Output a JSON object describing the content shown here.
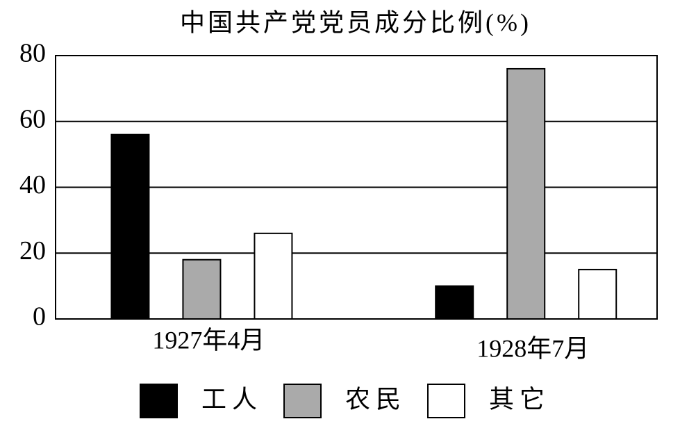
{
  "chart_data": {
    "type": "bar",
    "title": "中国共产党党员成分比例(%)",
    "categories": [
      "1927年4月",
      "1928年7月"
    ],
    "series": [
      {
        "name": "工人",
        "color": "#000000",
        "values": [
          56,
          10
        ]
      },
      {
        "name": "农民",
        "color": "#aaaaaa",
        "values": [
          18,
          76
        ]
      },
      {
        "name": "其它",
        "color": "#ffffff",
        "values": [
          26,
          15
        ]
      }
    ],
    "ylim": [
      0,
      80
    ],
    "yticks": [
      0,
      20,
      40,
      60,
      80
    ],
    "grid": true
  }
}
